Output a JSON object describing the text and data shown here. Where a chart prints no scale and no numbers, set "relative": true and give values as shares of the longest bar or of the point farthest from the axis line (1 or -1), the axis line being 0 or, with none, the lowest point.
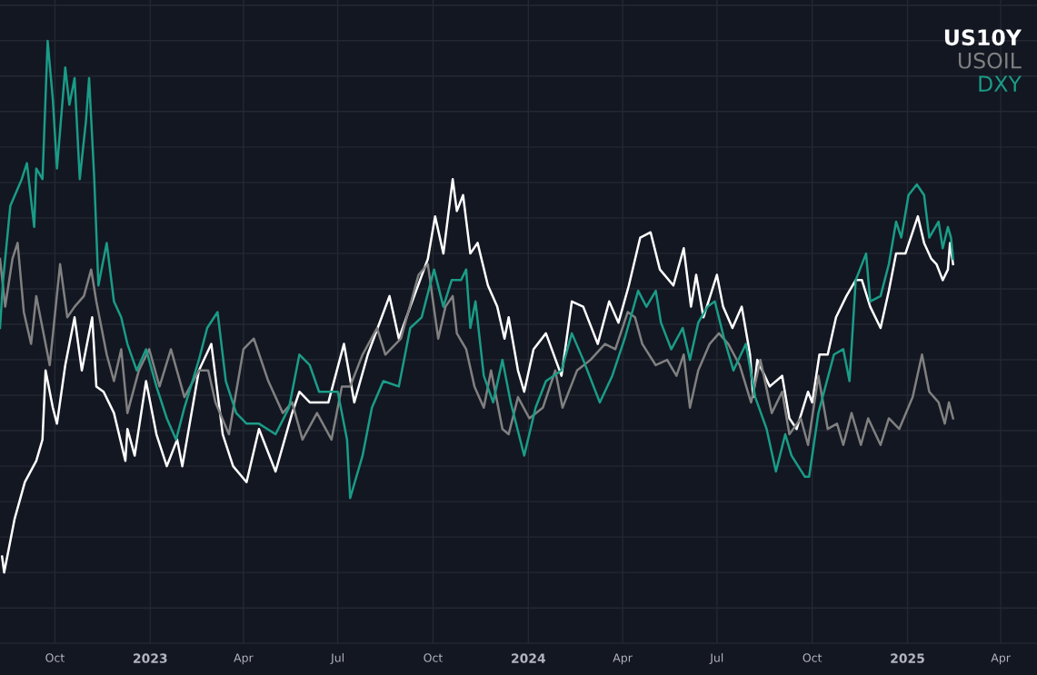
{
  "chart_data": {
    "type": "line",
    "relative": true,
    "legend": "top right",
    "grid": true,
    "line_style": "solid",
    "marker": "none",
    "xlim": [
      "2022-08-09",
      "2025-05-06"
    ],
    "xticks": [
      {
        "value": "2022-10-01",
        "label": "Oct"
      },
      {
        "value": "2023-01-01",
        "label": "2023"
      },
      {
        "value": "2023-04-01",
        "label": "Apr"
      },
      {
        "value": "2023-07-01",
        "label": "Jul"
      },
      {
        "value": "2023-10-01",
        "label": "Oct"
      },
      {
        "value": "2024-01-01",
        "label": "2024"
      },
      {
        "value": "2024-04-01",
        "label": "Apr"
      },
      {
        "value": "2024-07-01",
        "label": "Jul"
      },
      {
        "value": "2024-10-01",
        "label": "Oct"
      },
      {
        "value": "2025-01-01",
        "label": "2025"
      },
      {
        "value": "2025-04-01",
        "label": "Apr"
      }
    ],
    "series": [
      {
        "name": "US10Y",
        "color": "#ffffff",
        "x": [
          "2022-08-11",
          "2022-08-13",
          "2022-08-23",
          "2022-09-02",
          "2022-09-13",
          "2022-09-19",
          "2022-09-22",
          "2022-09-29",
          "2022-10-03",
          "2022-10-11",
          "2022-10-20",
          "2022-10-27",
          "2022-11-06",
          "2022-11-10",
          "2022-11-17",
          "2022-11-27",
          "2022-12-08",
          "2022-12-10",
          "2022-12-17",
          "2022-12-28",
          "2023-01-07",
          "2023-01-17",
          "2023-01-27",
          "2023-02-01",
          "2023-02-17",
          "2023-03-01",
          "2023-03-12",
          "2023-03-22",
          "2023-04-04",
          "2023-04-16",
          "2023-05-02",
          "2023-05-18",
          "2023-05-25",
          "2023-06-04",
          "2023-06-22",
          "2023-07-07",
          "2023-07-17",
          "2023-07-30",
          "2023-08-20",
          "2023-08-29",
          "2023-09-09",
          "2023-09-26",
          "2023-10-03",
          "2023-10-11",
          "2023-10-20",
          "2023-10-24",
          "2023-10-30",
          "2023-11-06",
          "2023-11-13",
          "2023-11-23",
          "2023-12-02",
          "2023-12-09",
          "2023-12-13",
          "2023-12-22",
          "2023-12-28",
          "2024-01-06",
          "2024-01-18",
          "2024-02-02",
          "2024-02-12",
          "2024-02-23",
          "2024-03-08",
          "2024-03-19",
          "2024-03-28",
          "2024-04-07",
          "2024-04-18",
          "2024-04-28",
          "2024-05-07",
          "2024-05-20",
          "2024-05-30",
          "2024-06-06",
          "2024-06-11",
          "2024-06-18",
          "2024-07-01",
          "2024-07-07",
          "2024-07-16",
          "2024-07-25",
          "2024-08-02",
          "2024-08-05",
          "2024-08-09",
          "2024-08-21",
          "2024-09-02",
          "2024-09-09",
          "2024-09-16",
          "2024-09-27",
          "2024-10-01",
          "2024-10-08",
          "2024-10-16",
          "2024-10-24",
          "2024-11-03",
          "2024-11-12",
          "2024-11-18",
          "2024-11-26",
          "2024-12-06",
          "2024-12-14",
          "2024-12-21",
          "2024-12-30",
          "2025-01-11",
          "2025-01-17",
          "2025-01-24",
          "2025-01-29",
          "2025-02-04",
          "2025-02-09",
          "2025-02-11",
          "2025-02-14"
        ],
        "values": [
          0.03,
          0,
          0.1,
          0.17,
          0.21,
          0.25,
          0.38,
          0.31,
          0.28,
          0.39,
          0.48,
          0.38,
          0.48,
          0.35,
          0.34,
          0.3,
          0.21,
          0.27,
          0.22,
          0.36,
          0.26,
          0.2,
          0.25,
          0.2,
          0.38,
          0.43,
          0.26,
          0.2,
          0.17,
          0.27,
          0.19,
          0.3,
          0.34,
          0.32,
          0.32,
          0.43,
          0.32,
          0.41,
          0.52,
          0.44,
          0.5,
          0.59,
          0.67,
          0.6,
          0.74,
          0.68,
          0.71,
          0.6,
          0.62,
          0.54,
          0.5,
          0.44,
          0.48,
          0.38,
          0.34,
          0.42,
          0.45,
          0.37,
          0.51,
          0.5,
          0.43,
          0.51,
          0.47,
          0.54,
          0.63,
          0.64,
          0.57,
          0.54,
          0.61,
          0.5,
          0.56,
          0.48,
          0.56,
          0.5,
          0.46,
          0.5,
          0.41,
          0.33,
          0.4,
          0.35,
          0.37,
          0.29,
          0.27,
          0.34,
          0.32,
          0.41,
          0.41,
          0.48,
          0.52,
          0.55,
          0.55,
          0.5,
          0.46,
          0.53,
          0.6,
          0.6,
          0.67,
          0.62,
          0.59,
          0.58,
          0.55,
          0.57,
          0.62,
          0.58
        ]
      },
      {
        "name": "USOIL",
        "color": "#808080",
        "x": [
          "2022-08-09",
          "2022-08-14",
          "2022-08-21",
          "2022-08-26",
          "2022-09-01",
          "2022-09-08",
          "2022-09-13",
          "2022-09-19",
          "2022-09-26",
          "2022-10-06",
          "2022-10-13",
          "2022-10-20",
          "2022-10-29",
          "2022-11-05",
          "2022-11-10",
          "2022-11-20",
          "2022-11-27",
          "2022-12-04",
          "2022-12-10",
          "2022-12-21",
          "2022-12-31",
          "2023-01-10",
          "2023-01-21",
          "2023-02-03",
          "2023-02-17",
          "2023-02-26",
          "2023-03-05",
          "2023-03-18",
          "2023-04-01",
          "2023-04-11",
          "2023-04-25",
          "2023-05-09",
          "2023-05-18",
          "2023-05-28",
          "2023-06-11",
          "2023-06-25",
          "2023-07-05",
          "2023-07-13",
          "2023-07-25",
          "2023-08-08",
          "2023-08-16",
          "2023-08-31",
          "2023-09-17",
          "2023-09-26",
          "2023-10-06",
          "2023-10-13",
          "2023-10-20",
          "2023-10-24",
          "2023-11-02",
          "2023-11-10",
          "2023-11-19",
          "2023-11-26",
          "2023-12-07",
          "2023-12-13",
          "2023-12-22",
          "2024-01-02",
          "2024-01-15",
          "2024-01-27",
          "2024-02-03",
          "2024-02-17",
          "2024-03-01",
          "2024-03-15",
          "2024-03-25",
          "2024-04-06",
          "2024-04-13",
          "2024-04-20",
          "2024-05-03",
          "2024-05-14",
          "2024-05-23",
          "2024-05-30",
          "2024-06-05",
          "2024-06-13",
          "2024-06-24",
          "2024-07-03",
          "2024-07-12",
          "2024-07-23",
          "2024-08-03",
          "2024-08-12",
          "2024-08-23",
          "2024-09-02",
          "2024-09-09",
          "2024-09-20",
          "2024-09-27",
          "2024-10-07",
          "2024-10-16",
          "2024-10-25",
          "2024-10-31",
          "2024-11-08",
          "2024-11-17",
          "2024-11-24",
          "2024-12-06",
          "2024-12-14",
          "2024-12-24",
          "2025-01-06",
          "2025-01-15",
          "2025-01-22",
          "2025-01-31",
          "2025-02-06",
          "2025-02-10",
          "2025-02-14"
        ],
        "values": [
          0.59,
          0.5,
          0.59,
          0.62,
          0.49,
          0.43,
          0.52,
          0.46,
          0.39,
          0.58,
          0.48,
          0.5,
          0.52,
          0.57,
          0.51,
          0.41,
          0.36,
          0.42,
          0.3,
          0.38,
          0.42,
          0.35,
          0.42,
          0.33,
          0.38,
          0.38,
          0.32,
          0.26,
          0.42,
          0.44,
          0.36,
          0.3,
          0.32,
          0.25,
          0.3,
          0.25,
          0.35,
          0.35,
          0.41,
          0.46,
          0.41,
          0.44,
          0.56,
          0.58,
          0.44,
          0.5,
          0.52,
          0.45,
          0.42,
          0.35,
          0.31,
          0.38,
          0.27,
          0.26,
          0.33,
          0.29,
          0.31,
          0.38,
          0.31,
          0.38,
          0.4,
          0.43,
          0.42,
          0.49,
          0.48,
          0.43,
          0.39,
          0.4,
          0.37,
          0.41,
          0.31,
          0.38,
          0.43,
          0.45,
          0.43,
          0.39,
          0.32,
          0.4,
          0.3,
          0.34,
          0.26,
          0.29,
          0.24,
          0.37,
          0.27,
          0.28,
          0.24,
          0.3,
          0.24,
          0.29,
          0.24,
          0.29,
          0.27,
          0.33,
          0.41,
          0.34,
          0.32,
          0.28,
          0.32,
          0.29
        ]
      },
      {
        "name": "DXY",
        "color": "#1a9c87",
        "x": [
          "2022-08-09",
          "2022-08-12",
          "2022-08-19",
          "2022-08-30",
          "2022-09-04",
          "2022-09-11",
          "2022-09-13",
          "2022-09-19",
          "2022-09-24",
          "2022-09-29",
          "2022-10-03",
          "2022-10-11",
          "2022-10-15",
          "2022-10-20",
          "2022-10-25",
          "2022-10-31",
          "2022-11-03",
          "2022-11-08",
          "2022-11-12",
          "2022-11-20",
          "2022-11-27",
          "2022-12-04",
          "2022-12-10",
          "2022-12-19",
          "2022-12-28",
          "2023-01-07",
          "2023-01-17",
          "2023-01-26",
          "2023-02-03",
          "2023-02-17",
          "2023-02-25",
          "2023-03-07",
          "2023-03-15",
          "2023-03-25",
          "2023-04-04",
          "2023-04-16",
          "2023-05-02",
          "2023-05-15",
          "2023-05-25",
          "2023-06-04",
          "2023-06-13",
          "2023-07-01",
          "2023-07-10",
          "2023-07-13",
          "2023-07-25",
          "2023-08-03",
          "2023-08-14",
          "2023-08-29",
          "2023-09-09",
          "2023-09-20",
          "2023-10-02",
          "2023-10-11",
          "2023-10-19",
          "2023-10-28",
          "2023-11-02",
          "2023-11-06",
          "2023-11-11",
          "2023-11-19",
          "2023-11-28",
          "2023-12-07",
          "2023-12-15",
          "2023-12-28",
          "2024-01-08",
          "2024-01-18",
          "2024-02-02",
          "2024-02-12",
          "2024-02-23",
          "2024-03-10",
          "2024-03-22",
          "2024-04-03",
          "2024-04-16",
          "2024-04-24",
          "2024-05-03",
          "2024-05-08",
          "2024-05-18",
          "2024-05-29",
          "2024-06-05",
          "2024-06-13",
          "2024-06-22",
          "2024-06-29",
          "2024-07-08",
          "2024-07-17",
          "2024-07-29",
          "2024-08-07",
          "2024-08-18",
          "2024-08-27",
          "2024-09-05",
          "2024-09-11",
          "2024-09-24",
          "2024-09-28",
          "2024-10-07",
          "2024-10-22",
          "2024-10-31",
          "2024-11-06",
          "2024-11-12",
          "2024-11-22",
          "2024-11-26",
          "2024-12-06",
          "2024-12-14",
          "2024-12-21",
          "2024-12-26",
          "2025-01-02",
          "2025-01-10",
          "2025-01-17",
          "2025-01-22",
          "2025-01-31",
          "2025-02-04",
          "2025-02-09",
          "2025-02-12",
          "2025-02-14"
        ],
        "values": [
          0.46,
          0.55,
          0.69,
          0.74,
          0.77,
          0.65,
          0.76,
          0.74,
          1.0,
          0.89,
          0.76,
          0.95,
          0.88,
          0.93,
          0.74,
          0.85,
          0.93,
          0.74,
          0.54,
          0.62,
          0.51,
          0.48,
          0.43,
          0.38,
          0.42,
          0.35,
          0.29,
          0.25,
          0.31,
          0.4,
          0.46,
          0.49,
          0.36,
          0.3,
          0.28,
          0.28,
          0.26,
          0.31,
          0.41,
          0.39,
          0.34,
          0.34,
          0.25,
          0.14,
          0.22,
          0.31,
          0.36,
          0.35,
          0.46,
          0.48,
          0.57,
          0.5,
          0.55,
          0.55,
          0.57,
          0.46,
          0.51,
          0.37,
          0.32,
          0.4,
          0.32,
          0.22,
          0.31,
          0.36,
          0.38,
          0.45,
          0.4,
          0.32,
          0.37,
          0.44,
          0.53,
          0.5,
          0.53,
          0.47,
          0.42,
          0.46,
          0.4,
          0.47,
          0.5,
          0.51,
          0.44,
          0.38,
          0.43,
          0.33,
          0.27,
          0.19,
          0.26,
          0.22,
          0.18,
          0.18,
          0.3,
          0.41,
          0.42,
          0.36,
          0.55,
          0.6,
          0.51,
          0.52,
          0.58,
          0.66,
          0.63,
          0.71,
          0.73,
          0.71,
          0.63,
          0.66,
          0.61,
          0.65,
          0.63,
          0.59
        ]
      }
    ]
  }
}
